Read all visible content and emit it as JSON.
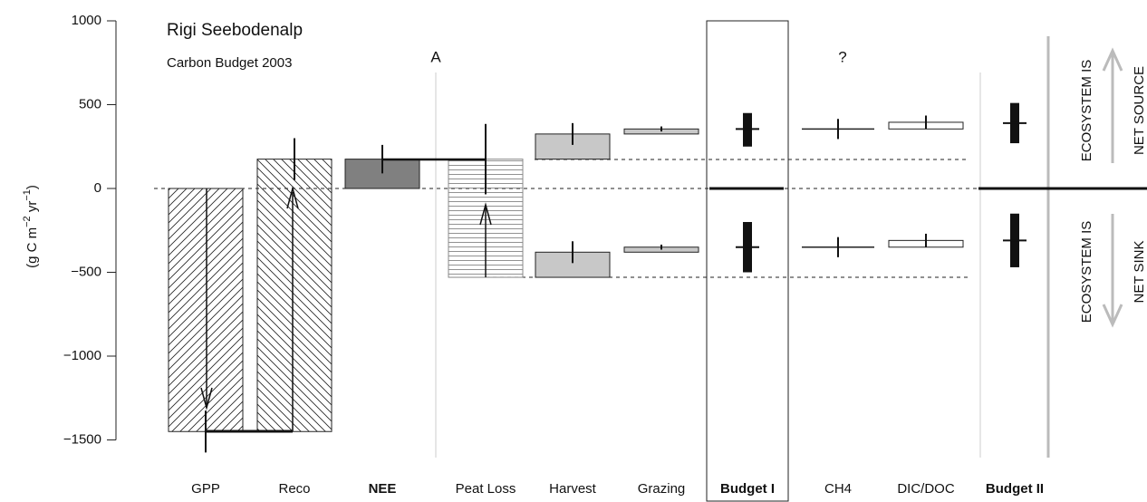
{
  "chart_data": {
    "type": "floating-bar",
    "title": "Rigi Seebodenalp",
    "subtitle": "Carbon Budget 2003",
    "annotations": [
      "A",
      "?"
    ],
    "ylabel": [
      "(g C m",
      "−2",
      " yr",
      "−1",
      ")"
    ],
    "side_labels": [
      "ECOSYSTEM IS",
      "NET SOURCE",
      "ECOSYSTEM IS",
      "NET SINK"
    ],
    "categories": [
      "GPP",
      "Reco",
      "NEE",
      "Peat Loss",
      "Harvest",
      "Grazing",
      "Budget I",
      "CH4",
      "DIC/DOC",
      "Budget II"
    ],
    "bold": [
      false,
      false,
      true,
      false,
      false,
      false,
      true,
      false,
      false,
      true
    ],
    "ylim": [
      -1500,
      1000
    ],
    "yticks": [
      {
        "value": -1500,
        "label": "−1500"
      },
      {
        "value": -1000,
        "label": "−1000"
      },
      {
        "value": -500,
        "label": "−500"
      },
      0,
      500,
      1000
    ],
    "bars": [
      [
        {
          "low": -1450,
          "high": 0,
          "err": 125,
          "err_end": "low",
          "style": "diag-up",
          "color": "#ffffff"
        }
      ],
      [
        {
          "low": -1450,
          "high": 175,
          "err": 125,
          "err_end": "high",
          "style": "diag-down",
          "color": "#ffffff"
        }
      ],
      [
        {
          "low": 0,
          "high": 175,
          "err": 85,
          "err_end": "high",
          "style": "solid",
          "color": "#808080"
        }
      ],
      [
        {
          "low": -530,
          "high": 175,
          "err": 210,
          "err_end": "high",
          "style": "horizontal",
          "color": "#ffffff"
        }
      ],
      [
        {
          "low": 175,
          "high": 325,
          "err": 65,
          "err_end": "high",
          "style": "solid",
          "color": "#c8c8c8"
        },
        {
          "low": -530,
          "high": -380,
          "err": 65,
          "err_end": "high",
          "style": "solid",
          "color": "#c8c8c8"
        }
      ],
      [
        {
          "low": 325,
          "high": 355,
          "err": 15,
          "err_end": "high",
          "style": "solid",
          "color": "#c8c8c8"
        },
        {
          "low": -380,
          "high": -350,
          "err": 15,
          "err_end": "high",
          "style": "solid",
          "color": "#c8c8c8"
        }
      ],
      [
        {
          "center": 355,
          "low": 250,
          "high": 450,
          "style": "range",
          "color": "#111111"
        },
        {
          "center": -350,
          "low": -500,
          "high": -200,
          "style": "range",
          "color": "#111111"
        }
      ],
      [
        {
          "low": 355,
          "high": 355,
          "err": 60,
          "err_end": "high",
          "style": "solid",
          "color": "#ffffff"
        },
        {
          "low": -350,
          "high": -350,
          "err": 60,
          "err_end": "high",
          "style": "solid",
          "color": "#ffffff"
        }
      ],
      [
        {
          "low": 355,
          "high": 395,
          "err": 40,
          "err_end": "high",
          "style": "solid",
          "color": "#ffffff"
        },
        {
          "low": -350,
          "high": -310,
          "err": 40,
          "err_end": "high",
          "style": "solid",
          "color": "#ffffff"
        }
      ],
      [
        {
          "center": 390,
          "low": 270,
          "high": 510,
          "style": "range",
          "color": "#111111"
        },
        {
          "center": -310,
          "low": -470,
          "high": -150,
          "style": "range",
          "color": "#111111"
        }
      ]
    ]
  }
}
